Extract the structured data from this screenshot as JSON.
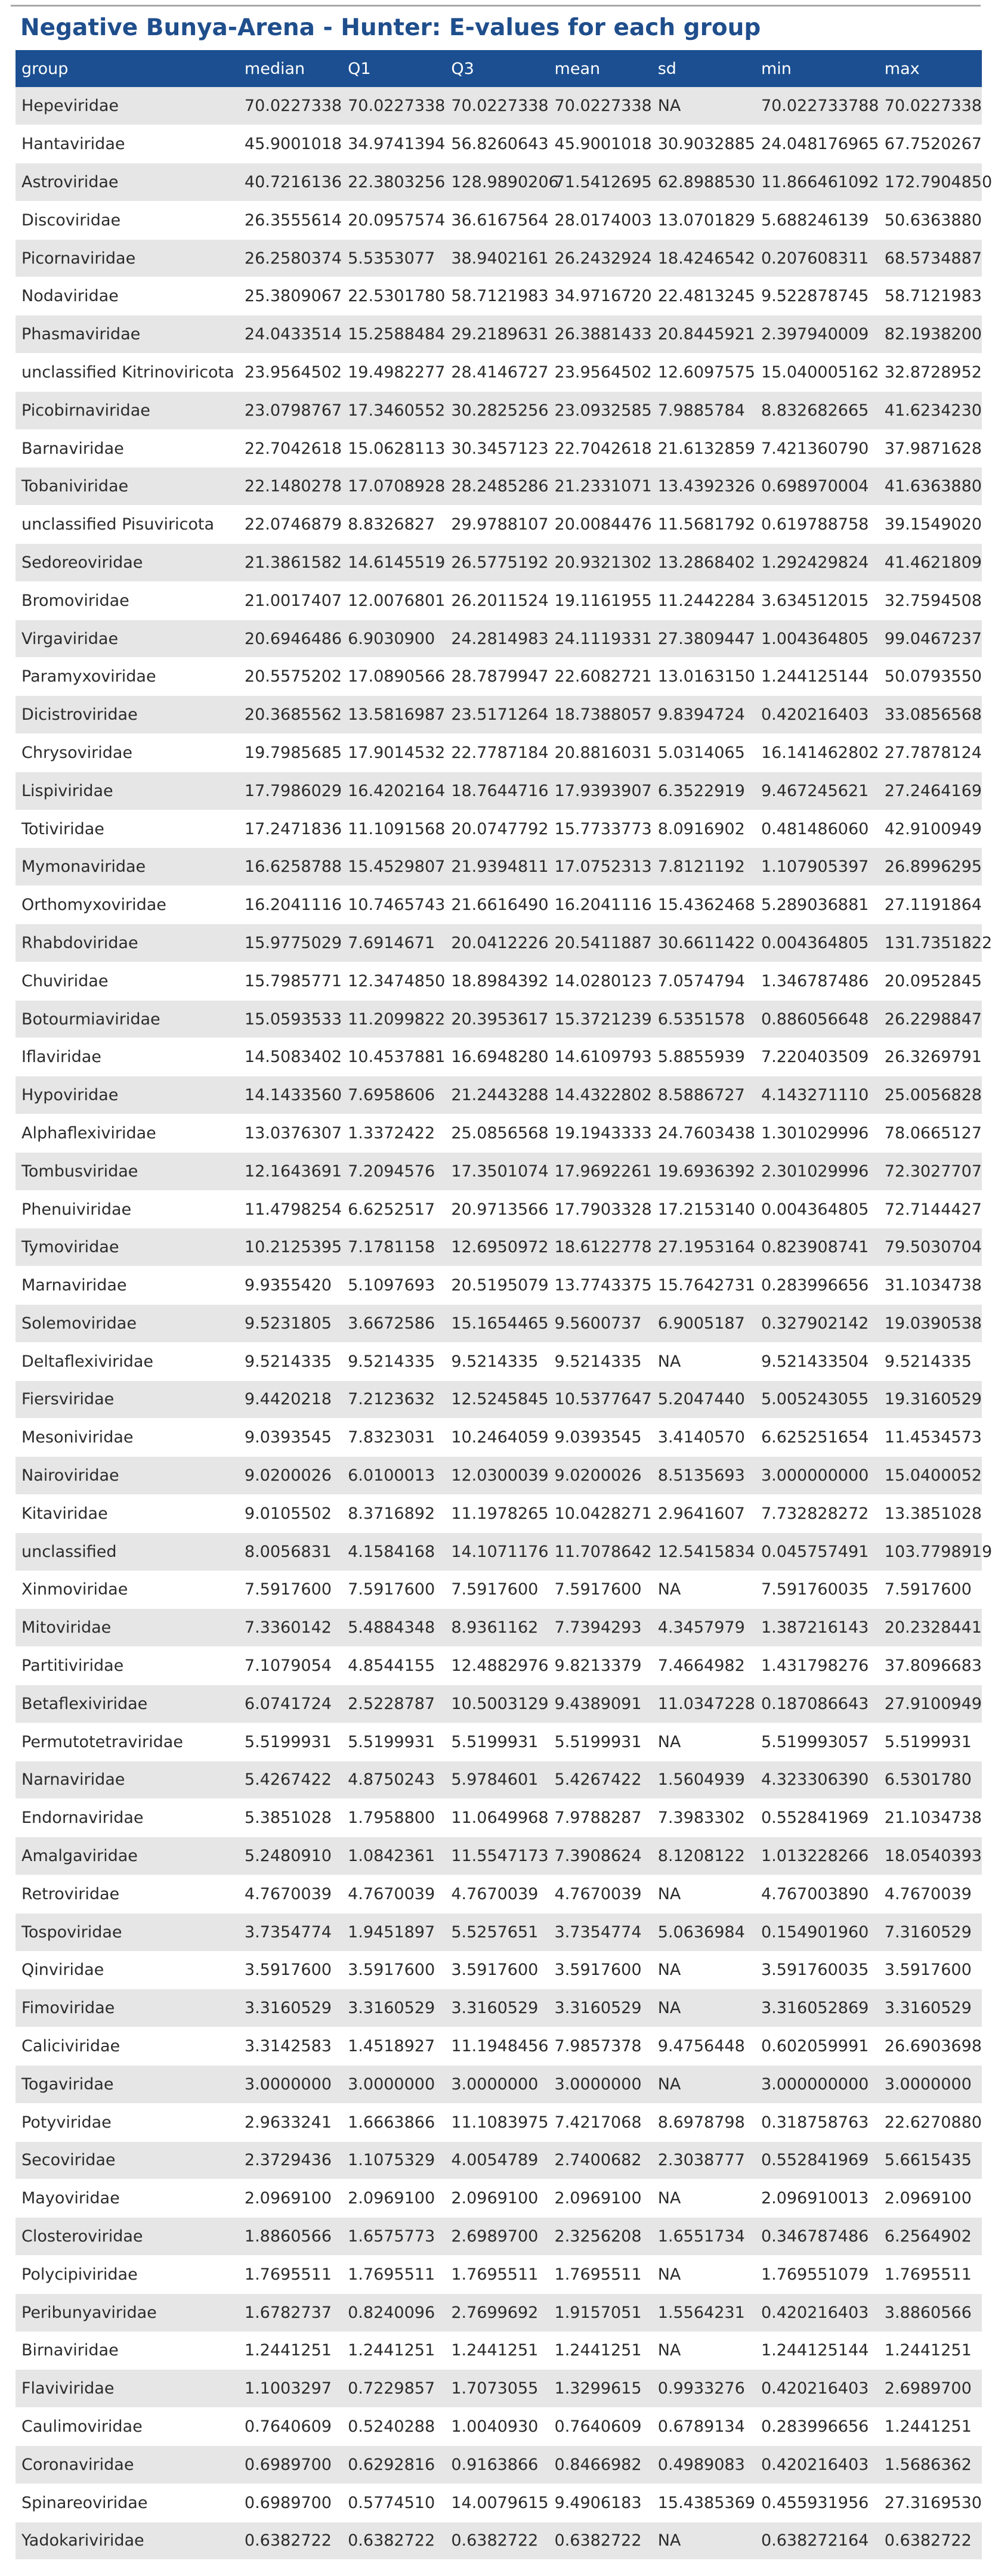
{
  "title": "Negative Bunya-Arena - Hunter: E-values for each group",
  "columns": [
    "group",
    "median",
    "Q1",
    "Q3",
    "mean",
    "sd",
    "min",
    "max"
  ],
  "rows": [
    [
      "Hepeviridae",
      "70.0227338",
      "70.0227338",
      "70.0227338",
      "70.0227338",
      "NA",
      "70.022733788",
      "70.0227338"
    ],
    [
      "Hantaviridae",
      "45.9001018",
      "34.9741394",
      "56.8260643",
      "45.9001018",
      "30.9032885",
      "24.048176965",
      "67.7520267"
    ],
    [
      "Astroviridae",
      "40.7216136",
      "22.3803256",
      "128.9890206",
      "71.5412695",
      "62.8988530",
      "11.866461092",
      "172.7904850"
    ],
    [
      "Discoviridae",
      "26.3555614",
      "20.0957574",
      "36.6167564",
      "28.0174003",
      "13.0701829",
      "5.688246139",
      "50.6363880"
    ],
    [
      "Picornaviridae",
      "26.2580374",
      "5.5353077",
      "38.9402161",
      "26.2432924",
      "18.4246542",
      "0.207608311",
      "68.5734887"
    ],
    [
      "Nodaviridae",
      "25.3809067",
      "22.5301780",
      "58.7121983",
      "34.9716720",
      "22.4813245",
      "9.522878745",
      "58.7121983"
    ],
    [
      "Phasmaviridae",
      "24.0433514",
      "15.2588484",
      "29.2189631",
      "26.3881433",
      "20.8445921",
      "2.397940009",
      "82.1938200"
    ],
    [
      "unclassified Kitrinoviricota",
      "23.9564502",
      "19.4982277",
      "28.4146727",
      "23.9564502",
      "12.6097575",
      "15.040005162",
      "32.8728952"
    ],
    [
      "Picobirnaviridae",
      "23.0798767",
      "17.3460552",
      "30.2825256",
      "23.0932585",
      "7.9885784",
      "8.832682665",
      "41.6234230"
    ],
    [
      "Barnaviridae",
      "22.7042618",
      "15.0628113",
      "30.3457123",
      "22.7042618",
      "21.6132859",
      "7.421360790",
      "37.9871628"
    ],
    [
      "Tobaniviridae",
      "22.1480278",
      "17.0708928",
      "28.2485286",
      "21.2331071",
      "13.4392326",
      "0.698970004",
      "41.6363880"
    ],
    [
      "unclassified Pisuviricota",
      "22.0746879",
      "8.8326827",
      "29.9788107",
      "20.0084476",
      "11.5681792",
      "0.619788758",
      "39.1549020"
    ],
    [
      "Sedoreoviridae",
      "21.3861582",
      "14.6145519",
      "26.5775192",
      "20.9321302",
      "13.2868402",
      "1.292429824",
      "41.4621809"
    ],
    [
      "Bromoviridae",
      "21.0017407",
      "12.0076801",
      "26.2011524",
      "19.1161955",
      "11.2442284",
      "3.634512015",
      "32.7594508"
    ],
    [
      "Virgaviridae",
      "20.6946486",
      "6.9030900",
      "24.2814983",
      "24.1119331",
      "27.3809447",
      "1.004364805",
      "99.0467237"
    ],
    [
      "Paramyxoviridae",
      "20.5575202",
      "17.0890566",
      "28.7879947",
      "22.6082721",
      "13.0163150",
      "1.244125144",
      "50.0793550"
    ],
    [
      "Dicistroviridae",
      "20.3685562",
      "13.5816987",
      "23.5171264",
      "18.7388057",
      "9.8394724",
      "0.420216403",
      "33.0856568"
    ],
    [
      "Chrysoviridae",
      "19.7985685",
      "17.9014532",
      "22.7787184",
      "20.8816031",
      "5.0314065",
      "16.141462802",
      "27.7878124"
    ],
    [
      "Lispiviridae",
      "17.7986029",
      "16.4202164",
      "18.7644716",
      "17.9393907",
      "6.3522919",
      "9.467245621",
      "27.2464169"
    ],
    [
      "Totiviridae",
      "17.2471836",
      "11.1091568",
      "20.0747792",
      "15.7733773",
      "8.0916902",
      "0.481486060",
      "42.9100949"
    ],
    [
      "Mymonaviridae",
      "16.6258788",
      "15.4529807",
      "21.9394811",
      "17.0752313",
      "7.8121192",
      "1.107905397",
      "26.8996295"
    ],
    [
      "Orthomyxoviridae",
      "16.2041116",
      "10.7465743",
      "21.6616490",
      "16.2041116",
      "15.4362468",
      "5.289036881",
      "27.1191864"
    ],
    [
      "Rhabdoviridae",
      "15.9775029",
      "7.6914671",
      "20.0412226",
      "20.5411887",
      "30.6611422",
      "0.004364805",
      "131.7351822"
    ],
    [
      "Chuviridae",
      "15.7985771",
      "12.3474850",
      "18.8984392",
      "14.0280123",
      "7.0574794",
      "1.346787486",
      "20.0952845"
    ],
    [
      "Botourmiaviridae",
      "15.0593533",
      "11.2099822",
      "20.3953617",
      "15.3721239",
      "6.5351578",
      "0.886056648",
      "26.2298847"
    ],
    [
      "Iflaviridae",
      "14.5083402",
      "10.4537881",
      "16.6948280",
      "14.6109793",
      "5.8855939",
      "7.220403509",
      "26.3269791"
    ],
    [
      "Hypoviridae",
      "14.1433560",
      "7.6958606",
      "21.2443288",
      "14.4322802",
      "8.5886727",
      "4.143271110",
      "25.0056828"
    ],
    [
      "Alphaflexiviridae",
      "13.0376307",
      "1.3372422",
      "25.0856568",
      "19.1943333",
      "24.7603438",
      "1.301029996",
      "78.0665127"
    ],
    [
      "Tombusviridae",
      "12.1643691",
      "7.2094576",
      "17.3501074",
      "17.9692261",
      "19.6936392",
      "2.301029996",
      "72.3027707"
    ],
    [
      "Phenuiviridae",
      "11.4798254",
      "6.6252517",
      "20.9713566",
      "17.7903328",
      "17.2153140",
      "0.004364805",
      "72.7144427"
    ],
    [
      "Tymoviridae",
      "10.2125395",
      "7.1781158",
      "12.6950972",
      "18.6122778",
      "27.1953164",
      "0.823908741",
      "79.5030704"
    ],
    [
      "Marnaviridae",
      "9.9355420",
      "5.1097693",
      "20.5195079",
      "13.7743375",
      "15.7642731",
      "0.283996656",
      "31.1034738"
    ],
    [
      "Solemoviridae",
      "9.5231805",
      "3.6672586",
      "15.1654465",
      "9.5600737",
      "6.9005187",
      "0.327902142",
      "19.0390538"
    ],
    [
      "Deltaflexiviridae",
      "9.5214335",
      "9.5214335",
      "9.5214335",
      "9.5214335",
      "NA",
      "9.521433504",
      "9.5214335"
    ],
    [
      "Fiersviridae",
      "9.4420218",
      "7.2123632",
      "12.5245845",
      "10.5377647",
      "5.2047440",
      "5.005243055",
      "19.3160529"
    ],
    [
      "Mesoniviridae",
      "9.0393545",
      "7.8323031",
      "10.2464059",
      "9.0393545",
      "3.4140570",
      "6.625251654",
      "11.4534573"
    ],
    [
      "Nairoviridae",
      "9.0200026",
      "6.0100013",
      "12.0300039",
      "9.0200026",
      "8.5135693",
      "3.000000000",
      "15.0400052"
    ],
    [
      "Kitaviridae",
      "9.0105502",
      "8.3716892",
      "11.1978265",
      "10.0428271",
      "2.9641607",
      "7.732828272",
      "13.3851028"
    ],
    [
      "unclassified",
      "8.0056831",
      "4.1584168",
      "14.1071176",
      "11.7078642",
      "12.5415834",
      "0.045757491",
      "103.7798919"
    ],
    [
      "Xinmoviridae",
      "7.5917600",
      "7.5917600",
      "7.5917600",
      "7.5917600",
      "NA",
      "7.591760035",
      "7.5917600"
    ],
    [
      "Mitoviridae",
      "7.3360142",
      "5.4884348",
      "8.9361162",
      "7.7394293",
      "4.3457979",
      "1.387216143",
      "20.2328441"
    ],
    [
      "Partitiviridae",
      "7.1079054",
      "4.8544155",
      "12.4882976",
      "9.8213379",
      "7.4664982",
      "1.431798276",
      "37.8096683"
    ],
    [
      "Betaflexiviridae",
      "6.0741724",
      "2.5228787",
      "10.5003129",
      "9.4389091",
      "11.0347228",
      "0.187086643",
      "27.9100949"
    ],
    [
      "Permutotetraviridae",
      "5.5199931",
      "5.5199931",
      "5.5199931",
      "5.5199931",
      "NA",
      "5.519993057",
      "5.5199931"
    ],
    [
      "Narnaviridae",
      "5.4267422",
      "4.8750243",
      "5.9784601",
      "5.4267422",
      "1.5604939",
      "4.323306390",
      "6.5301780"
    ],
    [
      "Endornaviridae",
      "5.3851028",
      "1.7958800",
      "11.0649968",
      "7.9788287",
      "7.3983302",
      "0.552841969",
      "21.1034738"
    ],
    [
      "Amalgaviridae",
      "5.2480910",
      "1.0842361",
      "11.5547173",
      "7.3908624",
      "8.1208122",
      "1.013228266",
      "18.0540393"
    ],
    [
      "Retroviridae",
      "4.7670039",
      "4.7670039",
      "4.7670039",
      "4.7670039",
      "NA",
      "4.767003890",
      "4.7670039"
    ],
    [
      "Tospoviridae",
      "3.7354774",
      "1.9451897",
      "5.5257651",
      "3.7354774",
      "5.0636984",
      "0.154901960",
      "7.3160529"
    ],
    [
      "Qinviridae",
      "3.5917600",
      "3.5917600",
      "3.5917600",
      "3.5917600",
      "NA",
      "3.591760035",
      "3.5917600"
    ],
    [
      "Fimoviridae",
      "3.3160529",
      "3.3160529",
      "3.3160529",
      "3.3160529",
      "NA",
      "3.316052869",
      "3.3160529"
    ],
    [
      "Caliciviridae",
      "3.3142583",
      "1.4518927",
      "11.1948456",
      "7.9857378",
      "9.4756448",
      "0.602059991",
      "26.6903698"
    ],
    [
      "Togaviridae",
      "3.0000000",
      "3.0000000",
      "3.0000000",
      "3.0000000",
      "NA",
      "3.000000000",
      "3.0000000"
    ],
    [
      "Potyviridae",
      "2.9633241",
      "1.6663866",
      "11.1083975",
      "7.4217068",
      "8.6978798",
      "0.318758763",
      "22.6270880"
    ],
    [
      "Secoviridae",
      "2.3729436",
      "1.1075329",
      "4.0054789",
      "2.7400682",
      "2.3038777",
      "0.552841969",
      "5.6615435"
    ],
    [
      "Mayoviridae",
      "2.0969100",
      "2.0969100",
      "2.0969100",
      "2.0969100",
      "NA",
      "2.096910013",
      "2.0969100"
    ],
    [
      "Closteroviridae",
      "1.8860566",
      "1.6575773",
      "2.6989700",
      "2.3256208",
      "1.6551734",
      "0.346787486",
      "6.2564902"
    ],
    [
      "Polycipiviridae",
      "1.7695511",
      "1.7695511",
      "1.7695511",
      "1.7695511",
      "NA",
      "1.769551079",
      "1.7695511"
    ],
    [
      "Peribunyaviridae",
      "1.6782737",
      "0.8240096",
      "2.7699692",
      "1.9157051",
      "1.5564231",
      "0.420216403",
      "3.8860566"
    ],
    [
      "Birnaviridae",
      "1.2441251",
      "1.2441251",
      "1.2441251",
      "1.2441251",
      "NA",
      "1.244125144",
      "1.2441251"
    ],
    [
      "Flaviviridae",
      "1.1003297",
      "0.7229857",
      "1.7073055",
      "1.3299615",
      "0.9933276",
      "0.420216403",
      "2.6989700"
    ],
    [
      "Caulimoviridae",
      "0.7640609",
      "0.5240288",
      "1.0040930",
      "0.7640609",
      "0.6789134",
      "0.283996656",
      "1.2441251"
    ],
    [
      "Coronaviridae",
      "0.6989700",
      "0.6292816",
      "0.9163866",
      "0.8466982",
      "0.4989083",
      "0.420216403",
      "1.5686362"
    ],
    [
      "Spinareoviridae",
      "0.6989700",
      "0.5774510",
      "14.0079615",
      "9.4906183",
      "15.4385369",
      "0.455931956",
      "27.3169530"
    ],
    [
      "Yadokariviridae",
      "0.6382722",
      "0.6382722",
      "0.6382722",
      "0.6382722",
      "NA",
      "0.638272164",
      "0.6382722"
    ]
  ]
}
